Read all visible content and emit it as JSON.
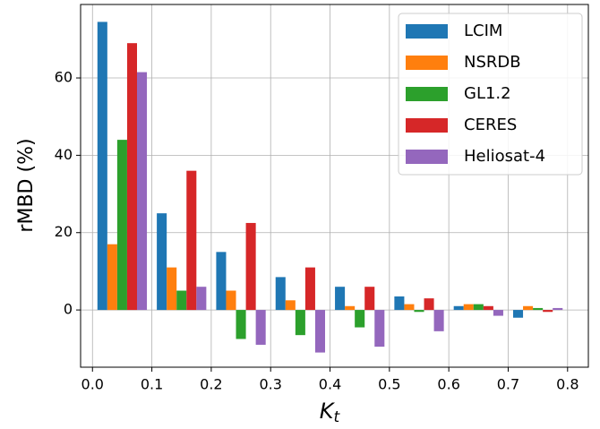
{
  "chart_data": {
    "type": "bar",
    "xlabel": "K",
    "xlabel_subscript": "t",
    "ylabel": "rMBD (%)",
    "x": [
      0.05,
      0.15,
      0.25,
      0.35,
      0.45,
      0.55,
      0.65,
      0.75
    ],
    "series": [
      {
        "name": "LCIM",
        "color": "#1f77b4",
        "values": [
          74.5,
          25,
          15,
          8.5,
          6,
          3.5,
          1,
          -2
        ]
      },
      {
        "name": "NSRDB",
        "color": "#ff7f0e",
        "values": [
          17,
          11,
          5,
          2.5,
          1,
          1.5,
          1.5,
          1
        ]
      },
      {
        "name": "GL1.2",
        "color": "#2ca02c",
        "values": [
          44,
          5,
          -7.5,
          -6.5,
          -4.5,
          -0.5,
          1.5,
          0.5
        ]
      },
      {
        "name": "CERES",
        "color": "#d62728",
        "values": [
          69,
          36,
          22.5,
          11,
          6,
          3,
          1,
          -0.5
        ]
      },
      {
        "name": "Heliosat-4",
        "color": "#9467bd",
        "values": [
          61.5,
          6,
          -9,
          -11,
          -9.5,
          -5.5,
          -1.5,
          0.5
        ]
      }
    ],
    "xlim": [
      -0.02,
      0.835
    ],
    "ylim": [
      -14.8,
      79
    ],
    "xticks": [
      {
        "value": 0,
        "label": "0.0"
      },
      0.1,
      0.2,
      0.3,
      0.4,
      0.5,
      0.6,
      0.7,
      0.8
    ],
    "yticks": [
      0,
      20,
      40,
      60
    ],
    "grid": true,
    "legend": "upper right"
  }
}
